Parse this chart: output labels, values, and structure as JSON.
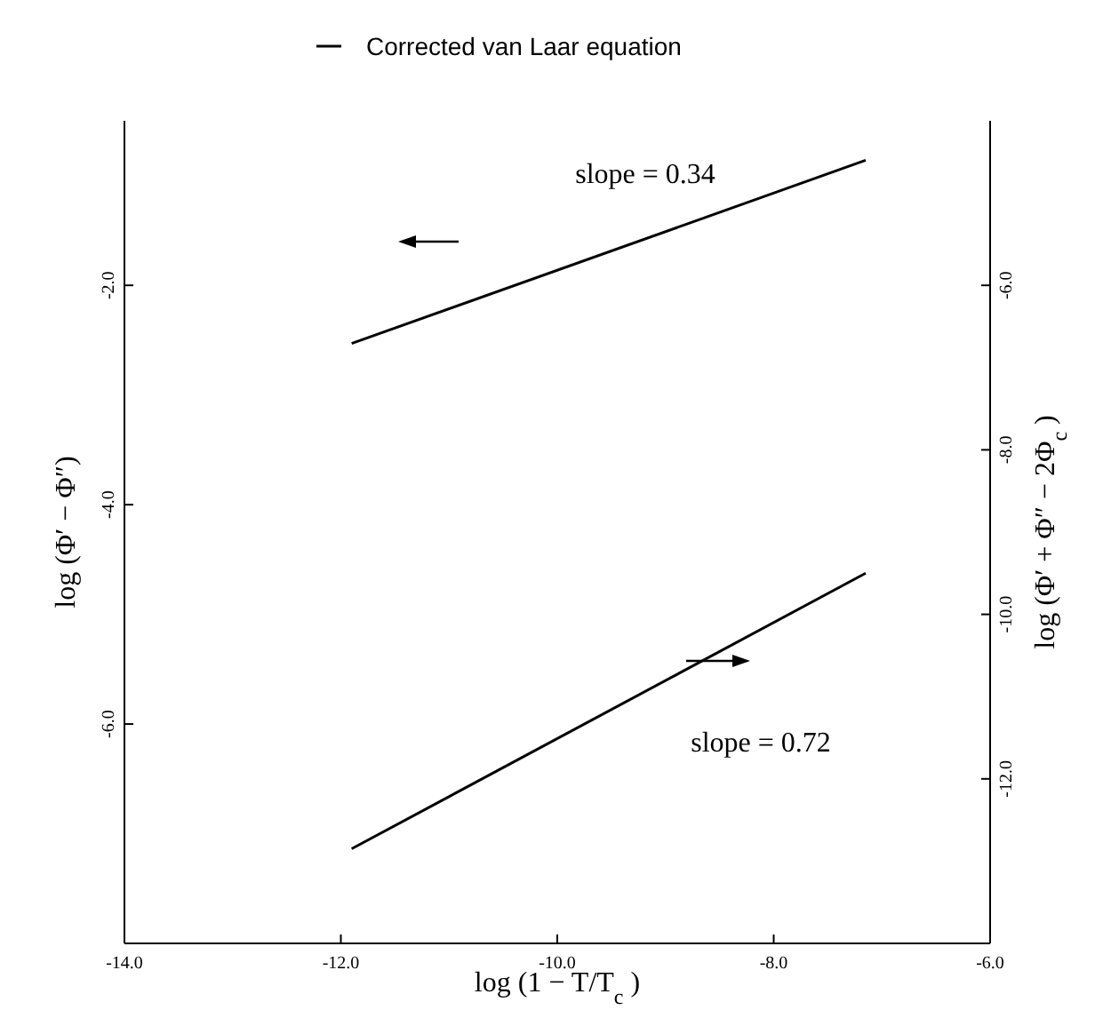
{
  "chart_data": {
    "type": "line",
    "xlabel": "log  (1 − T/T$_{c}$)",
    "ylabel": "log  (Φ′ − Φ″)",
    "y2label": "log  (Φ′ + Φ″ − 2Φ$_{c}$)",
    "xlim": [
      -14,
      -6
    ],
    "xticks": [
      {
        "value": -14,
        "label": "-14.0"
      },
      {
        "value": -12,
        "label": "-12.0"
      },
      {
        "value": -10,
        "label": "-10.0"
      },
      {
        "value": -8,
        "label": "-8.0"
      },
      {
        "value": -6,
        "label": "-6.0"
      }
    ],
    "ylim": [
      -8,
      -0.5
    ],
    "yticks": [
      {
        "value": -2,
        "label": "-2.0"
      },
      {
        "value": -4,
        "label": "-4.0"
      },
      {
        "value": -6,
        "label": "-6.0"
      }
    ],
    "y2lim": [
      -14,
      -4
    ],
    "y2ticks": [
      {
        "value": -6,
        "label": "-6.0"
      },
      {
        "value": -8,
        "label": "-8.0"
      },
      {
        "value": -10,
        "label": "-10.0"
      },
      {
        "value": -12,
        "label": "-12.0"
      }
    ],
    "series": [
      {
        "name": "Corrected van Laar equation",
        "color": "#000000",
        "values": [
          -2.53,
          -0.86
        ]
      },
      {
        "color": "#000000",
        "axis": "y2",
        "values": [
          -12.85,
          -9.5
        ]
      }
    ],
    "x": [
      -11.9,
      -7.15
    ],
    "annotations": [
      "slope = 0.34",
      "slope = 0.72"
    ],
    "legend": "top",
    "grid": false,
    "marker": "none",
    "line_style": "solid"
  }
}
